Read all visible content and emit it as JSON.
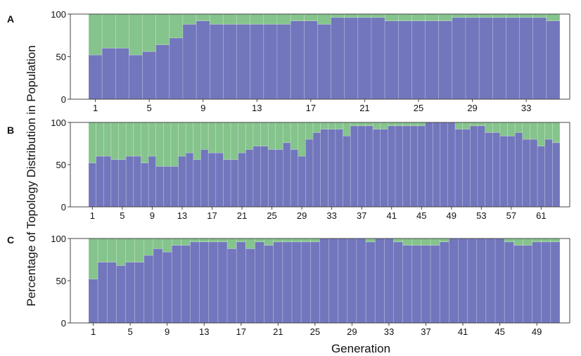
{
  "figure": {
    "ylabel": "Percentage of Topology Distribution in Population",
    "xlabel": "Generation"
  },
  "colors": {
    "series1": "#7276bc",
    "series2": "#85c48c",
    "axis": "#444444"
  },
  "chart_data": [
    {
      "panel": "A",
      "type": "bar",
      "stacked": true,
      "grid": false,
      "ylim": [
        0,
        100
      ],
      "yticks": [
        0,
        50,
        100
      ],
      "xticks": [
        1,
        5,
        9,
        13,
        17,
        21,
        25,
        29,
        33
      ],
      "x": [
        1,
        2,
        3,
        4,
        5,
        6,
        7,
        8,
        9,
        10,
        11,
        12,
        13,
        14,
        15,
        16,
        17,
        18,
        19,
        20,
        21,
        22,
        23,
        24,
        25,
        26,
        27,
        28,
        29,
        30,
        31,
        32,
        33,
        34,
        35
      ],
      "series": [
        {
          "values": [
            52,
            60,
            60,
            52,
            56,
            64,
            72,
            88,
            92,
            88,
            88,
            88,
            88,
            88,
            88,
            92,
            92,
            88,
            96,
            96,
            96,
            96,
            92,
            92,
            92,
            92,
            92,
            96,
            96,
            96,
            96,
            96,
            96,
            96,
            92
          ]
        },
        {
          "values": [
            48,
            40,
            40,
            48,
            44,
            36,
            28,
            12,
            8,
            12,
            12,
            12,
            12,
            12,
            12,
            8,
            8,
            12,
            4,
            4,
            4,
            4,
            8,
            8,
            8,
            8,
            8,
            4,
            4,
            4,
            4,
            4,
            4,
            4,
            8
          ]
        }
      ]
    },
    {
      "panel": "B",
      "type": "bar",
      "stacked": true,
      "grid": false,
      "ylim": [
        0,
        100
      ],
      "yticks": [
        0,
        50,
        100
      ],
      "xticks": [
        1,
        5,
        9,
        13,
        17,
        21,
        25,
        29,
        33,
        37,
        41,
        45,
        49,
        53,
        57,
        61
      ],
      "x": [
        1,
        2,
        3,
        4,
        5,
        6,
        7,
        8,
        9,
        10,
        11,
        12,
        13,
        14,
        15,
        16,
        17,
        18,
        19,
        20,
        21,
        22,
        23,
        24,
        25,
        26,
        27,
        28,
        29,
        30,
        31,
        32,
        33,
        34,
        35,
        36,
        37,
        38,
        39,
        40,
        41,
        42,
        43,
        44,
        45,
        46,
        47,
        48,
        49,
        50,
        51,
        52,
        53,
        54,
        55,
        56,
        57,
        58,
        59,
        60,
        61,
        62,
        63
      ],
      "series": [
        {
          "values": [
            52,
            60,
            60,
            56,
            56,
            60,
            60,
            52,
            60,
            48,
            48,
            48,
            60,
            64,
            56,
            68,
            64,
            64,
            56,
            56,
            64,
            68,
            72,
            72,
            68,
            68,
            76,
            68,
            60,
            80,
            88,
            92,
            92,
            92,
            84,
            96,
            96,
            96,
            92,
            92,
            96,
            96,
            96,
            96,
            96,
            100,
            100,
            100,
            100,
            92,
            92,
            96,
            96,
            88,
            88,
            84,
            84,
            88,
            80,
            80,
            72,
            80,
            76
          ]
        },
        {
          "values": [
            48,
            40,
            40,
            44,
            44,
            40,
            40,
            48,
            40,
            52,
            52,
            52,
            40,
            36,
            44,
            32,
            36,
            36,
            44,
            44,
            36,
            32,
            28,
            28,
            32,
            32,
            24,
            32,
            40,
            20,
            12,
            8,
            8,
            8,
            16,
            4,
            4,
            4,
            8,
            8,
            4,
            4,
            4,
            4,
            4,
            0,
            0,
            0,
            0,
            8,
            8,
            4,
            4,
            12,
            12,
            16,
            16,
            12,
            20,
            20,
            28,
            20,
            24
          ]
        }
      ]
    },
    {
      "panel": "C",
      "type": "bar",
      "stacked": true,
      "grid": false,
      "ylim": [
        0,
        100
      ],
      "yticks": [
        0,
        50,
        100
      ],
      "xticks": [
        1,
        5,
        9,
        13,
        17,
        21,
        25,
        29,
        33,
        37,
        41,
        45,
        49
      ],
      "x": [
        1,
        2,
        3,
        4,
        5,
        6,
        7,
        8,
        9,
        10,
        11,
        12,
        13,
        14,
        15,
        16,
        17,
        18,
        19,
        20,
        21,
        22,
        23,
        24,
        25,
        26,
        27,
        28,
        29,
        30,
        31,
        32,
        33,
        34,
        35,
        36,
        37,
        38,
        39,
        40,
        41,
        42,
        43,
        44,
        45,
        46,
        47,
        48,
        49,
        50,
        51
      ],
      "series": [
        {
          "values": [
            52,
            72,
            72,
            68,
            72,
            72,
            80,
            88,
            84,
            92,
            92,
            96,
            96,
            96,
            96,
            88,
            96,
            88,
            96,
            92,
            96,
            96,
            96,
            96,
            96,
            100,
            100,
            100,
            100,
            100,
            96,
            100,
            100,
            96,
            92,
            92,
            92,
            92,
            96,
            100,
            100,
            100,
            100,
            100,
            100,
            96,
            92,
            92,
            96,
            96,
            96
          ]
        },
        {
          "values": [
            48,
            28,
            28,
            32,
            28,
            28,
            20,
            12,
            16,
            8,
            8,
            4,
            4,
            4,
            4,
            12,
            4,
            12,
            4,
            8,
            4,
            4,
            4,
            4,
            4,
            0,
            0,
            0,
            0,
            0,
            4,
            0,
            0,
            4,
            8,
            8,
            8,
            8,
            4,
            0,
            0,
            0,
            0,
            0,
            0,
            4,
            8,
            8,
            4,
            4,
            4
          ]
        }
      ]
    }
  ]
}
